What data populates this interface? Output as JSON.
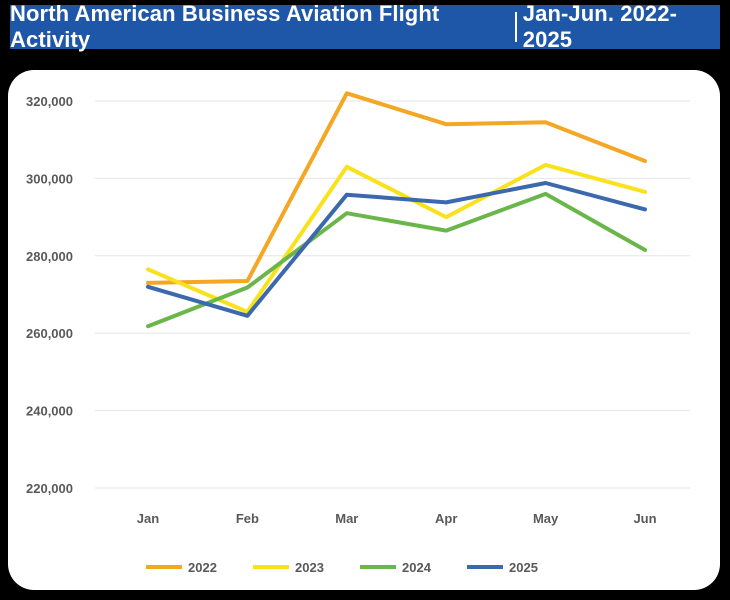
{
  "header": {
    "title_main": "North American Business Aviation Flight Activity",
    "title_range": "Jan-Jun. 2022-2025"
  },
  "chart_data": {
    "type": "line",
    "title": "North American Business Aviation Flight Activity | Jan-Jun. 2022-2025",
    "categories": [
      "Jan",
      "Feb",
      "Mar",
      "Apr",
      "May",
      "Jun"
    ],
    "ylim": [
      220000,
      320000
    ],
    "yticks": [
      220000,
      240000,
      260000,
      280000,
      300000,
      320000
    ],
    "ytick_labels": [
      "220,000",
      "240,000",
      "260,000",
      "280,000",
      "300,000",
      "320,000"
    ],
    "grid": true,
    "legend": "bottom",
    "series": [
      {
        "name": "2022",
        "color": "#f5a623",
        "values": [
          273000,
          273500,
          322000,
          314000,
          314500,
          304500
        ]
      },
      {
        "name": "2023",
        "color": "#f9e21b",
        "values": [
          276500,
          265500,
          303000,
          290000,
          303500,
          296500
        ]
      },
      {
        "name": "2024",
        "color": "#6ab64a",
        "values": [
          261800,
          271800,
          291000,
          286500,
          296000,
          281500
        ]
      },
      {
        "name": "2025",
        "color": "#3c69ad",
        "values": [
          272000,
          264500,
          295800,
          293800,
          298800,
          292000
        ]
      }
    ]
  }
}
